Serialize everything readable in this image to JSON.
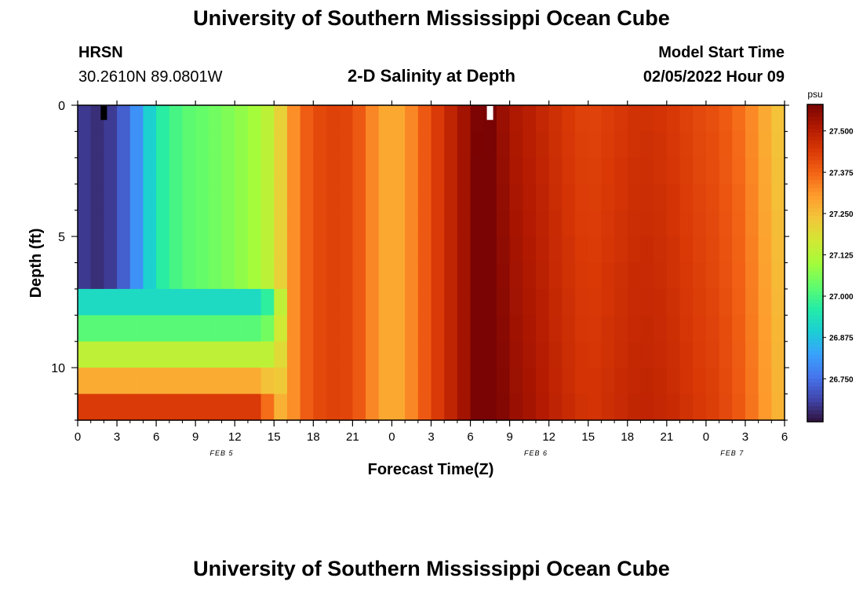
{
  "header": {
    "title": "University of Southern Mississippi Ocean Cube",
    "station": "HRSN",
    "coords": "30.2610N  89.0801W",
    "plot_title": "2-D Salinity at Depth",
    "model_start_label": "Model Start Time",
    "model_start_value": "02/05/2022 Hour 09"
  },
  "footer": {
    "title": "University of Southern Mississippi Ocean Cube"
  },
  "chart_data": {
    "type": "heatmap",
    "title": "2-D Salinity at Depth",
    "xlabel": "Forecast Time(Z)",
    "ylabel": "Depth (ft)",
    "x_start_hour": 0,
    "x_end_hour": 54,
    "x_tick_labels": [
      "0",
      "3",
      "6",
      "9",
      "12",
      "15",
      "18",
      "21",
      "0",
      "3",
      "6",
      "9",
      "12",
      "15",
      "18",
      "21",
      "0",
      "3",
      "6"
    ],
    "day_labels": [
      {
        "hour": 11,
        "label": "FEB 5"
      },
      {
        "hour": 35,
        "label": "FEB 6"
      },
      {
        "hour": 50,
        "label": "FEB 7"
      }
    ],
    "ylim": [
      0,
      12
    ],
    "y_tick_labels": [
      "0",
      "5",
      "10"
    ],
    "y_ticks": [
      0,
      5,
      10
    ],
    "depth_levels_ft": [
      0.5,
      1.5,
      2.5,
      3.5,
      4.5,
      5.5,
      6.5,
      7.5,
      8.5,
      9.5,
      10.5,
      11.5
    ],
    "colorbar": {
      "unit": "psu",
      "min": 26.62,
      "max": 27.58,
      "tick_values": [
        26.75,
        26.875,
        27.0,
        27.125,
        27.25,
        27.375,
        27.5
      ],
      "tick_labels": [
        "26.750",
        "26.875",
        "27.000",
        "27.125",
        "27.250",
        "27.375",
        "27.500"
      ],
      "colors": [
        "#30123b",
        "#4145ab",
        "#4675ed",
        "#39a2fc",
        "#1bcfd4",
        "#24eca6",
        "#61fc6c",
        "#a4fc3b",
        "#d1e834",
        "#f3c63a",
        "#fe9b2d",
        "#f36315",
        "#d93806",
        "#b11901",
        "#7a0403"
      ]
    },
    "surface_salinity_profile": [
      {
        "hour": 0,
        "psu": 26.68
      },
      {
        "hour": 2,
        "psu": 26.65
      },
      {
        "hour": 4,
        "psu": 26.75
      },
      {
        "hour": 6,
        "psu": 26.95
      },
      {
        "hour": 8,
        "psu": 27.02
      },
      {
        "hour": 10,
        "psu": 27.04
      },
      {
        "hour": 12,
        "psu": 27.07
      },
      {
        "hour": 14,
        "psu": 27.11
      },
      {
        "hour": 15,
        "psu": 27.16
      },
      {
        "hour": 16,
        "psu": 27.27
      },
      {
        "hour": 17,
        "psu": 27.37
      },
      {
        "hour": 19,
        "psu": 27.43
      },
      {
        "hour": 21,
        "psu": 27.42
      },
      {
        "hour": 22,
        "psu": 27.36
      },
      {
        "hour": 23,
        "psu": 27.3
      },
      {
        "hour": 24,
        "psu": 27.27
      },
      {
        "hour": 25,
        "psu": 27.3
      },
      {
        "hour": 26,
        "psu": 27.36
      },
      {
        "hour": 27,
        "psu": 27.42
      },
      {
        "hour": 28,
        "psu": 27.46
      },
      {
        "hour": 29,
        "psu": 27.51
      },
      {
        "hour": 30,
        "psu": 27.55
      },
      {
        "hour": 31,
        "psu": 27.6
      },
      {
        "hour": 32,
        "psu": 27.56
      },
      {
        "hour": 33,
        "psu": 27.52
      },
      {
        "hour": 35,
        "psu": 27.49
      },
      {
        "hour": 37,
        "psu": 27.45
      },
      {
        "hour": 39,
        "psu": 27.42
      },
      {
        "hour": 41,
        "psu": 27.44
      },
      {
        "hour": 43,
        "psu": 27.46
      },
      {
        "hour": 45,
        "psu": 27.45
      },
      {
        "hour": 47,
        "psu": 27.42
      },
      {
        "hour": 49,
        "psu": 27.4
      },
      {
        "hour": 51,
        "psu": 27.35
      },
      {
        "hour": 52,
        "psu": 27.3
      },
      {
        "hour": 53,
        "psu": 27.26
      },
      {
        "hour": 54,
        "psu": 27.22
      }
    ],
    "near_bottom_anomaly": {
      "description_levels_ft": [
        7.5,
        8.5,
        9.5,
        10.5,
        11.5
      ],
      "psu_until_hour_15": [
        26.92,
        27.02,
        27.14,
        27.28,
        27.44
      ]
    },
    "markers": [
      {
        "hour": 2,
        "depth_ft": 0.5,
        "color": "#000000"
      },
      {
        "hour": 31.5,
        "depth_ft": 0.5,
        "color": "#ffffff"
      }
    ]
  }
}
